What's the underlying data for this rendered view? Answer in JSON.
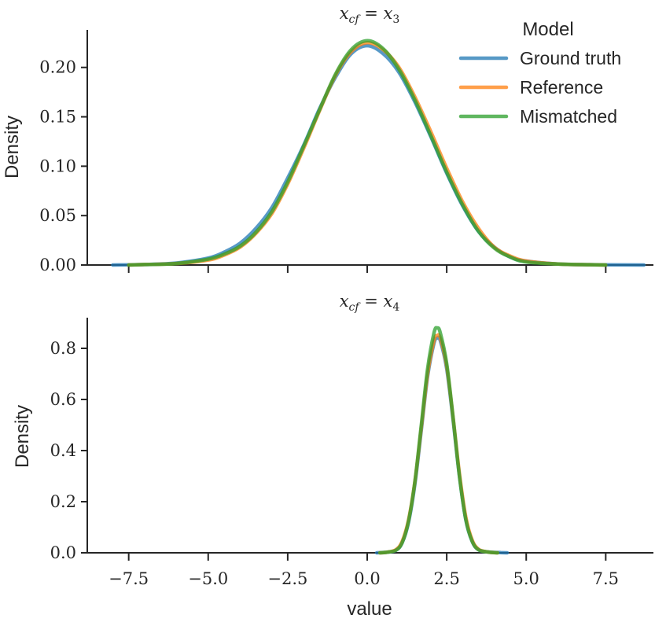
{
  "chart_data": [
    {
      "type": "line",
      "title": "x_cf = x_3",
      "title_parts": {
        "lhs": "x",
        "lhs_sub": "cf",
        "eq": " = ",
        "rhs": "x",
        "rhs_sub": "3"
      },
      "xlabel": "",
      "ylabel": "Density",
      "xlim": [
        -9.0,
        9.0
      ],
      "ylim": [
        0.0,
        0.238
      ],
      "xticks": [
        -7.5,
        -5.0,
        -2.5,
        0.0,
        2.5,
        5.0,
        7.5
      ],
      "yticks": [
        0.0,
        0.05,
        0.1,
        0.15,
        0.2
      ],
      "ytick_labels": [
        "0.00",
        "0.05",
        "0.10",
        "0.15",
        "0.20"
      ],
      "grid": false,
      "legend": "top-right",
      "series": [
        {
          "name": "Ground truth",
          "color": "#1f77b4",
          "x": [
            -8.0,
            -7.0,
            -6.0,
            -5.0,
            -4.5,
            -4.0,
            -3.5,
            -3.0,
            -2.5,
            -2.0,
            -1.5,
            -1.0,
            -0.5,
            0.0,
            0.5,
            1.0,
            1.5,
            2.0,
            2.5,
            3.0,
            3.5,
            4.0,
            4.5,
            5.0,
            6.0,
            7.0,
            8.0,
            8.7
          ],
          "y": [
            0.0,
            0.0005,
            0.002,
            0.007,
            0.013,
            0.022,
            0.037,
            0.058,
            0.088,
            0.121,
            0.158,
            0.19,
            0.214,
            0.222,
            0.214,
            0.195,
            0.165,
            0.13,
            0.093,
            0.06,
            0.034,
            0.018,
            0.008,
            0.004,
            0.001,
            0.0003,
            0.0001,
            0.0
          ]
        },
        {
          "name": "Reference",
          "color": "#ff7f0e",
          "x": [
            -7.5,
            -7.0,
            -6.0,
            -5.0,
            -4.5,
            -4.0,
            -3.5,
            -3.0,
            -2.5,
            -2.0,
            -1.5,
            -1.0,
            -0.5,
            0.0,
            0.5,
            1.0,
            1.5,
            2.0,
            2.5,
            3.0,
            3.5,
            4.0,
            4.5,
            5.0,
            6.0,
            7.0,
            7.5
          ],
          "y": [
            0.0,
            0.0005,
            0.0015,
            0.005,
            0.01,
            0.018,
            0.032,
            0.052,
            0.082,
            0.118,
            0.156,
            0.192,
            0.216,
            0.225,
            0.218,
            0.2,
            0.17,
            0.135,
            0.098,
            0.064,
            0.037,
            0.018,
            0.009,
            0.004,
            0.001,
            0.0003,
            0.0
          ]
        },
        {
          "name": "Mismatched",
          "color": "#2ca02c",
          "x": [
            -7.5,
            -7.0,
            -6.0,
            -5.0,
            -4.5,
            -4.0,
            -3.5,
            -3.0,
            -2.5,
            -2.0,
            -1.5,
            -1.0,
            -0.5,
            0.0,
            0.5,
            1.0,
            1.5,
            2.0,
            2.5,
            3.0,
            3.5,
            4.0,
            4.5,
            5.0,
            6.0,
            7.0,
            7.5
          ],
          "y": [
            0.0,
            0.0005,
            0.0015,
            0.006,
            0.011,
            0.019,
            0.033,
            0.054,
            0.084,
            0.12,
            0.157,
            0.193,
            0.218,
            0.227,
            0.219,
            0.198,
            0.167,
            0.131,
            0.094,
            0.061,
            0.034,
            0.017,
            0.008,
            0.003,
            0.001,
            0.0003,
            0.0
          ]
        }
      ]
    },
    {
      "type": "line",
      "title": "x_cf = x_4",
      "title_parts": {
        "lhs": "x",
        "lhs_sub": "cf",
        "eq": " = ",
        "rhs": "x",
        "rhs_sub": "4"
      },
      "xlabel": "value",
      "ylabel": "Density",
      "xlim": [
        -9.0,
        9.0
      ],
      "ylim": [
        0.0,
        0.92
      ],
      "xticks": [
        -7.5,
        -5.0,
        -2.5,
        0.0,
        2.5,
        5.0,
        7.5
      ],
      "xtick_labels": [
        "−7.5",
        "−5.0",
        "−2.5",
        "0.0",
        "2.5",
        "5.0",
        "7.5"
      ],
      "yticks": [
        0.0,
        0.2,
        0.4,
        0.6,
        0.8
      ],
      "ytick_labels": [
        "0.0",
        "0.2",
        "0.4",
        "0.6",
        "0.8"
      ],
      "grid": false,
      "series": [
        {
          "name": "Ground truth",
          "color": "#1f77b4",
          "x": [
            0.3,
            0.6,
            0.9,
            1.1,
            1.3,
            1.5,
            1.7,
            1.9,
            2.1,
            2.2,
            2.3,
            2.5,
            2.7,
            2.9,
            3.1,
            3.3,
            3.5,
            3.8,
            4.2,
            4.4
          ],
          "y": [
            0.0,
            0.002,
            0.01,
            0.04,
            0.12,
            0.27,
            0.48,
            0.69,
            0.82,
            0.84,
            0.83,
            0.72,
            0.52,
            0.3,
            0.13,
            0.045,
            0.012,
            0.003,
            0.001,
            0.0
          ]
        },
        {
          "name": "Reference",
          "color": "#ff7f0e",
          "x": [
            0.4,
            0.6,
            0.9,
            1.1,
            1.3,
            1.5,
            1.7,
            1.9,
            2.1,
            2.2,
            2.3,
            2.5,
            2.7,
            2.9,
            3.1,
            3.3,
            3.5,
            3.8,
            4.1
          ],
          "y": [
            0.0,
            0.002,
            0.012,
            0.045,
            0.13,
            0.28,
            0.49,
            0.7,
            0.83,
            0.85,
            0.84,
            0.73,
            0.53,
            0.31,
            0.14,
            0.05,
            0.014,
            0.003,
            0.0
          ]
        },
        {
          "name": "Mismatched",
          "color": "#2ca02c",
          "x": [
            0.4,
            0.6,
            0.9,
            1.1,
            1.3,
            1.5,
            1.7,
            1.9,
            2.1,
            2.2,
            2.3,
            2.5,
            2.7,
            2.9,
            3.1,
            3.3,
            3.5,
            3.8,
            4.1
          ],
          "y": [
            0.0,
            0.002,
            0.01,
            0.04,
            0.125,
            0.28,
            0.5,
            0.72,
            0.86,
            0.88,
            0.86,
            0.74,
            0.53,
            0.3,
            0.13,
            0.045,
            0.012,
            0.003,
            0.0
          ]
        }
      ]
    }
  ],
  "legend": {
    "title": "Model",
    "entries": [
      {
        "label": "Ground truth",
        "color": "#1f77b4"
      },
      {
        "label": "Reference",
        "color": "#ff7f0e"
      },
      {
        "label": "Mismatched",
        "color": "#2ca02c"
      }
    ]
  }
}
